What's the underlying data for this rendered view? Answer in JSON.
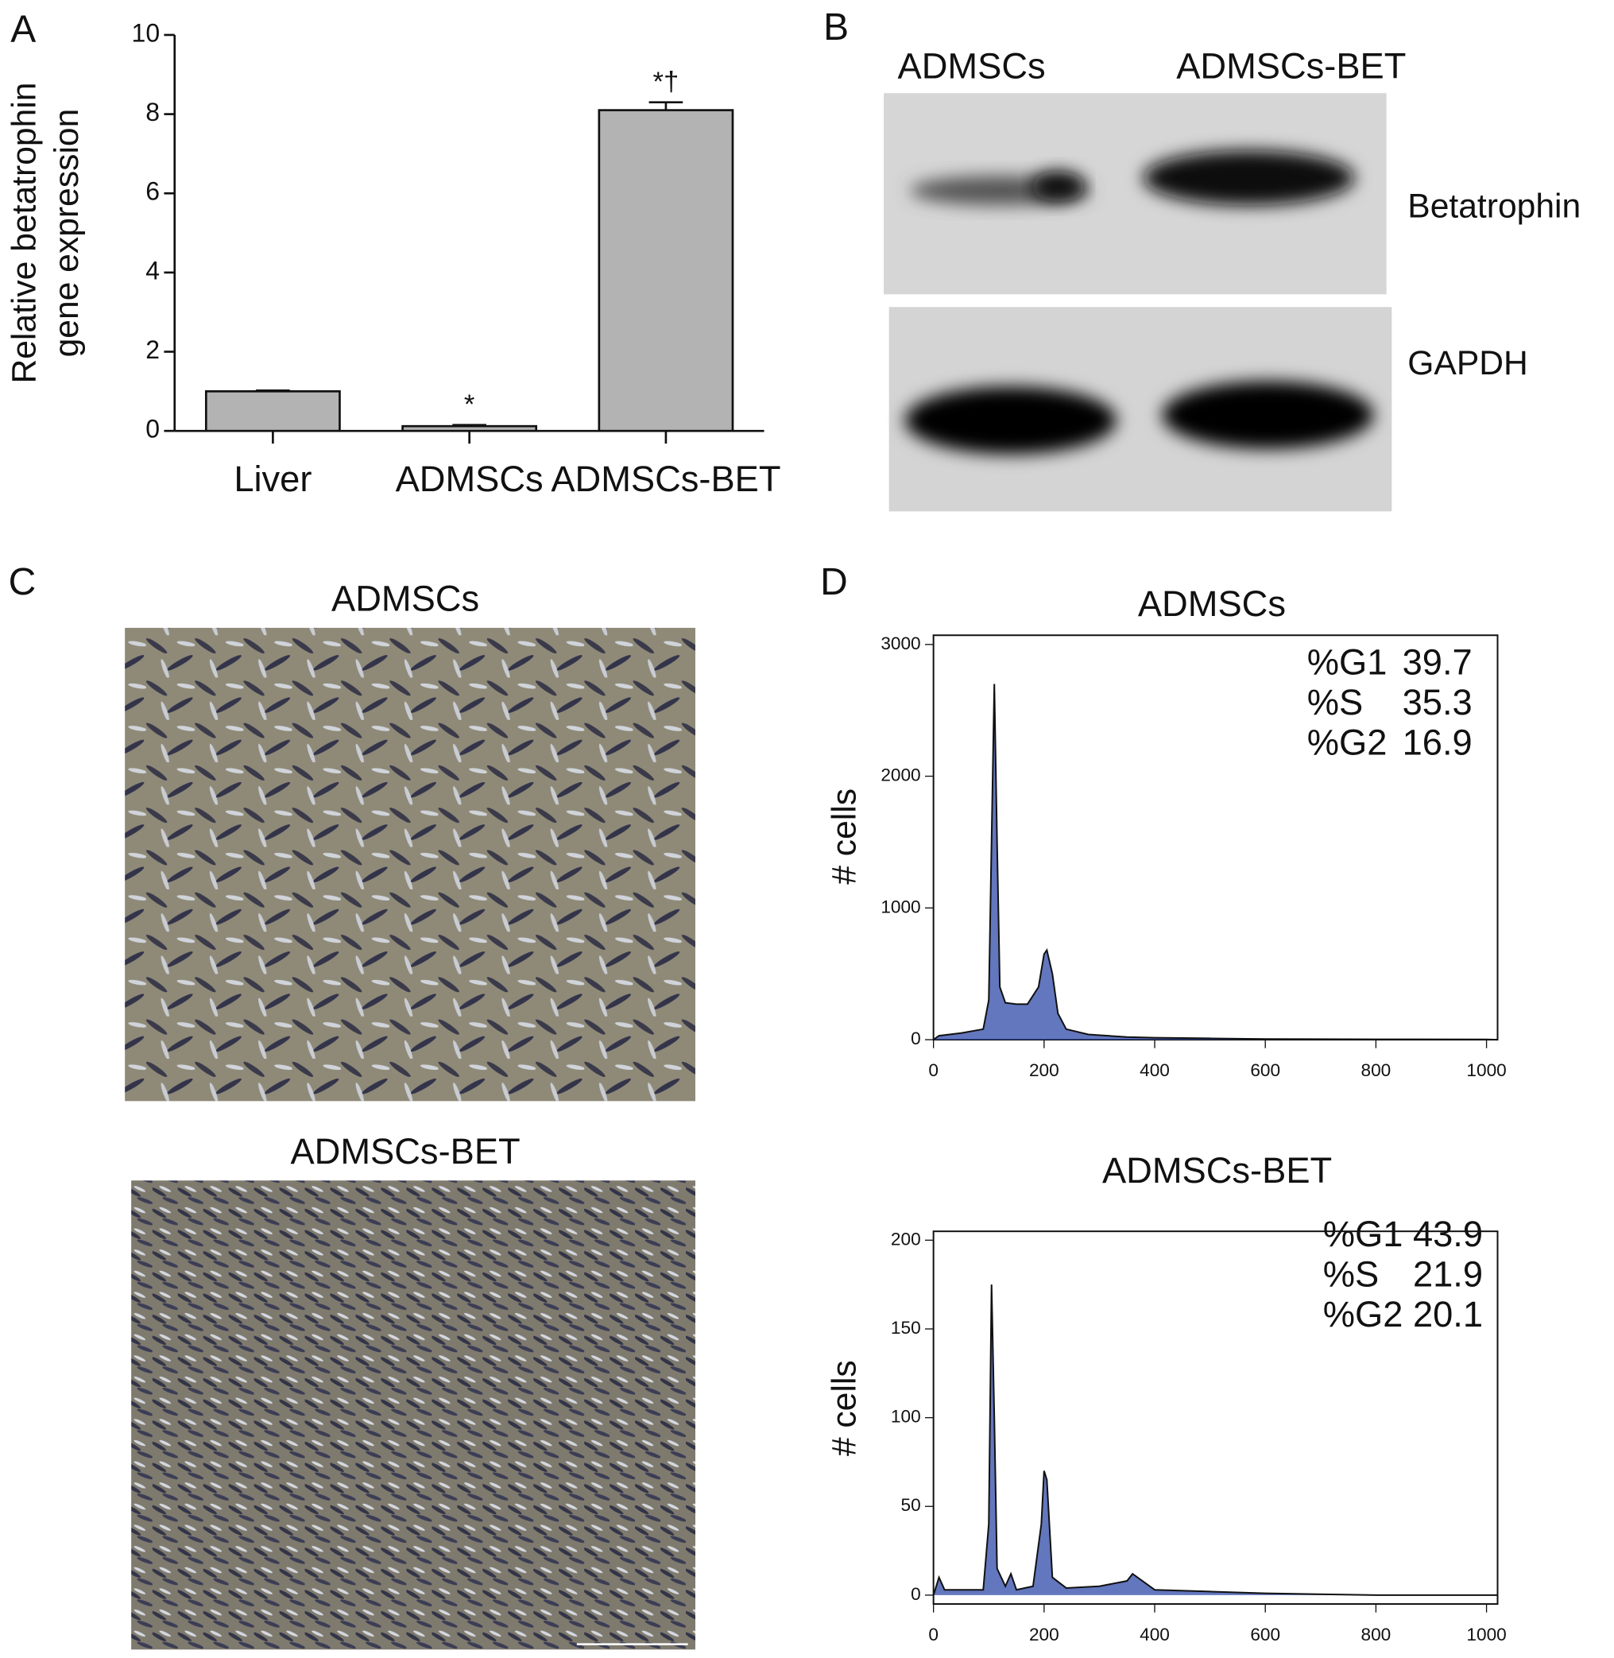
{
  "panel_labels": [
    "A",
    "B",
    "C",
    "D"
  ],
  "chart_data": [
    {
      "type": "bar",
      "ylabel": [
        "Relative betatrophin",
        "gene expression"
      ],
      "categories": [
        "Liver",
        "ADMSCs",
        "ADMSCs-BET"
      ],
      "values": [
        1.0,
        0.12,
        8.1
      ],
      "errors": [
        0.02,
        0.03,
        0.2
      ],
      "annotations": [
        null,
        "*",
        "*†"
      ],
      "color": "#b3b3b3",
      "ylim": [
        0,
        10
      ],
      "yticks": [
        0,
        2,
        4,
        6,
        8,
        10
      ]
    },
    {
      "type": "area",
      "title": "ADMSCs",
      "ylabel": "# cells",
      "x": [
        0,
        10,
        50,
        90,
        100,
        105,
        110,
        115,
        120,
        130,
        150,
        170,
        190,
        200,
        205,
        215,
        225,
        240,
        280,
        350,
        400,
        500,
        600,
        800,
        1000,
        1020
      ],
      "series": [
        {
          "color": "#2f4aa8",
          "values": [
            0,
            30,
            50,
            80,
            300,
            1500,
            2700,
            1500,
            400,
            280,
            270,
            270,
            400,
            650,
            680,
            500,
            200,
            80,
            40,
            20,
            15,
            10,
            5,
            3,
            2,
            0
          ]
        }
      ],
      "stats": [
        {
          "label": "%G1",
          "value": "39.7"
        },
        {
          "label": "%S",
          "value": "35.3"
        },
        {
          "label": "%G2",
          "value": "16.9"
        }
      ],
      "xlim": [
        0,
        1020
      ],
      "xticks": [
        0,
        200,
        400,
        600,
        800,
        1000
      ],
      "ylim": [
        0,
        3070
      ],
      "yticks": [
        0,
        1000,
        2000,
        3000
      ]
    },
    {
      "type": "area",
      "title": "ADMSCs-BET",
      "ylabel": "# cells",
      "x": [
        0,
        10,
        20,
        50,
        90,
        100,
        105,
        110,
        115,
        130,
        140,
        150,
        180,
        195,
        200,
        205,
        215,
        240,
        300,
        350,
        360,
        400,
        500,
        600,
        800,
        1020
      ],
      "series": [
        {
          "color": "#2f4aa8",
          "values": [
            0,
            10,
            3,
            3,
            3,
            40,
            175,
            100,
            15,
            5,
            12,
            3,
            5,
            40,
            70,
            65,
            10,
            4,
            5,
            8,
            12,
            3,
            2,
            1,
            0,
            0
          ]
        }
      ],
      "stats": [
        {
          "label": "%G1",
          "value": "43.9"
        },
        {
          "label": "%S",
          "value": "21.9"
        },
        {
          "label": "%G2",
          "value": "20.1"
        }
      ],
      "xlim": [
        0,
        1020
      ],
      "xticks": [
        0,
        200,
        400,
        600,
        800,
        1000
      ],
      "ylim": [
        -5,
        205
      ],
      "yticks": [
        0,
        50,
        100,
        150,
        200
      ]
    }
  ],
  "blot": {
    "lanes": [
      "ADMSCs",
      "ADMSCs-BET"
    ],
    "rows": [
      "Betatrophin",
      "GAPDH"
    ]
  },
  "micrographs": {
    "titles": [
      "ADMSCs",
      "ADMSCs-BET"
    ]
  }
}
